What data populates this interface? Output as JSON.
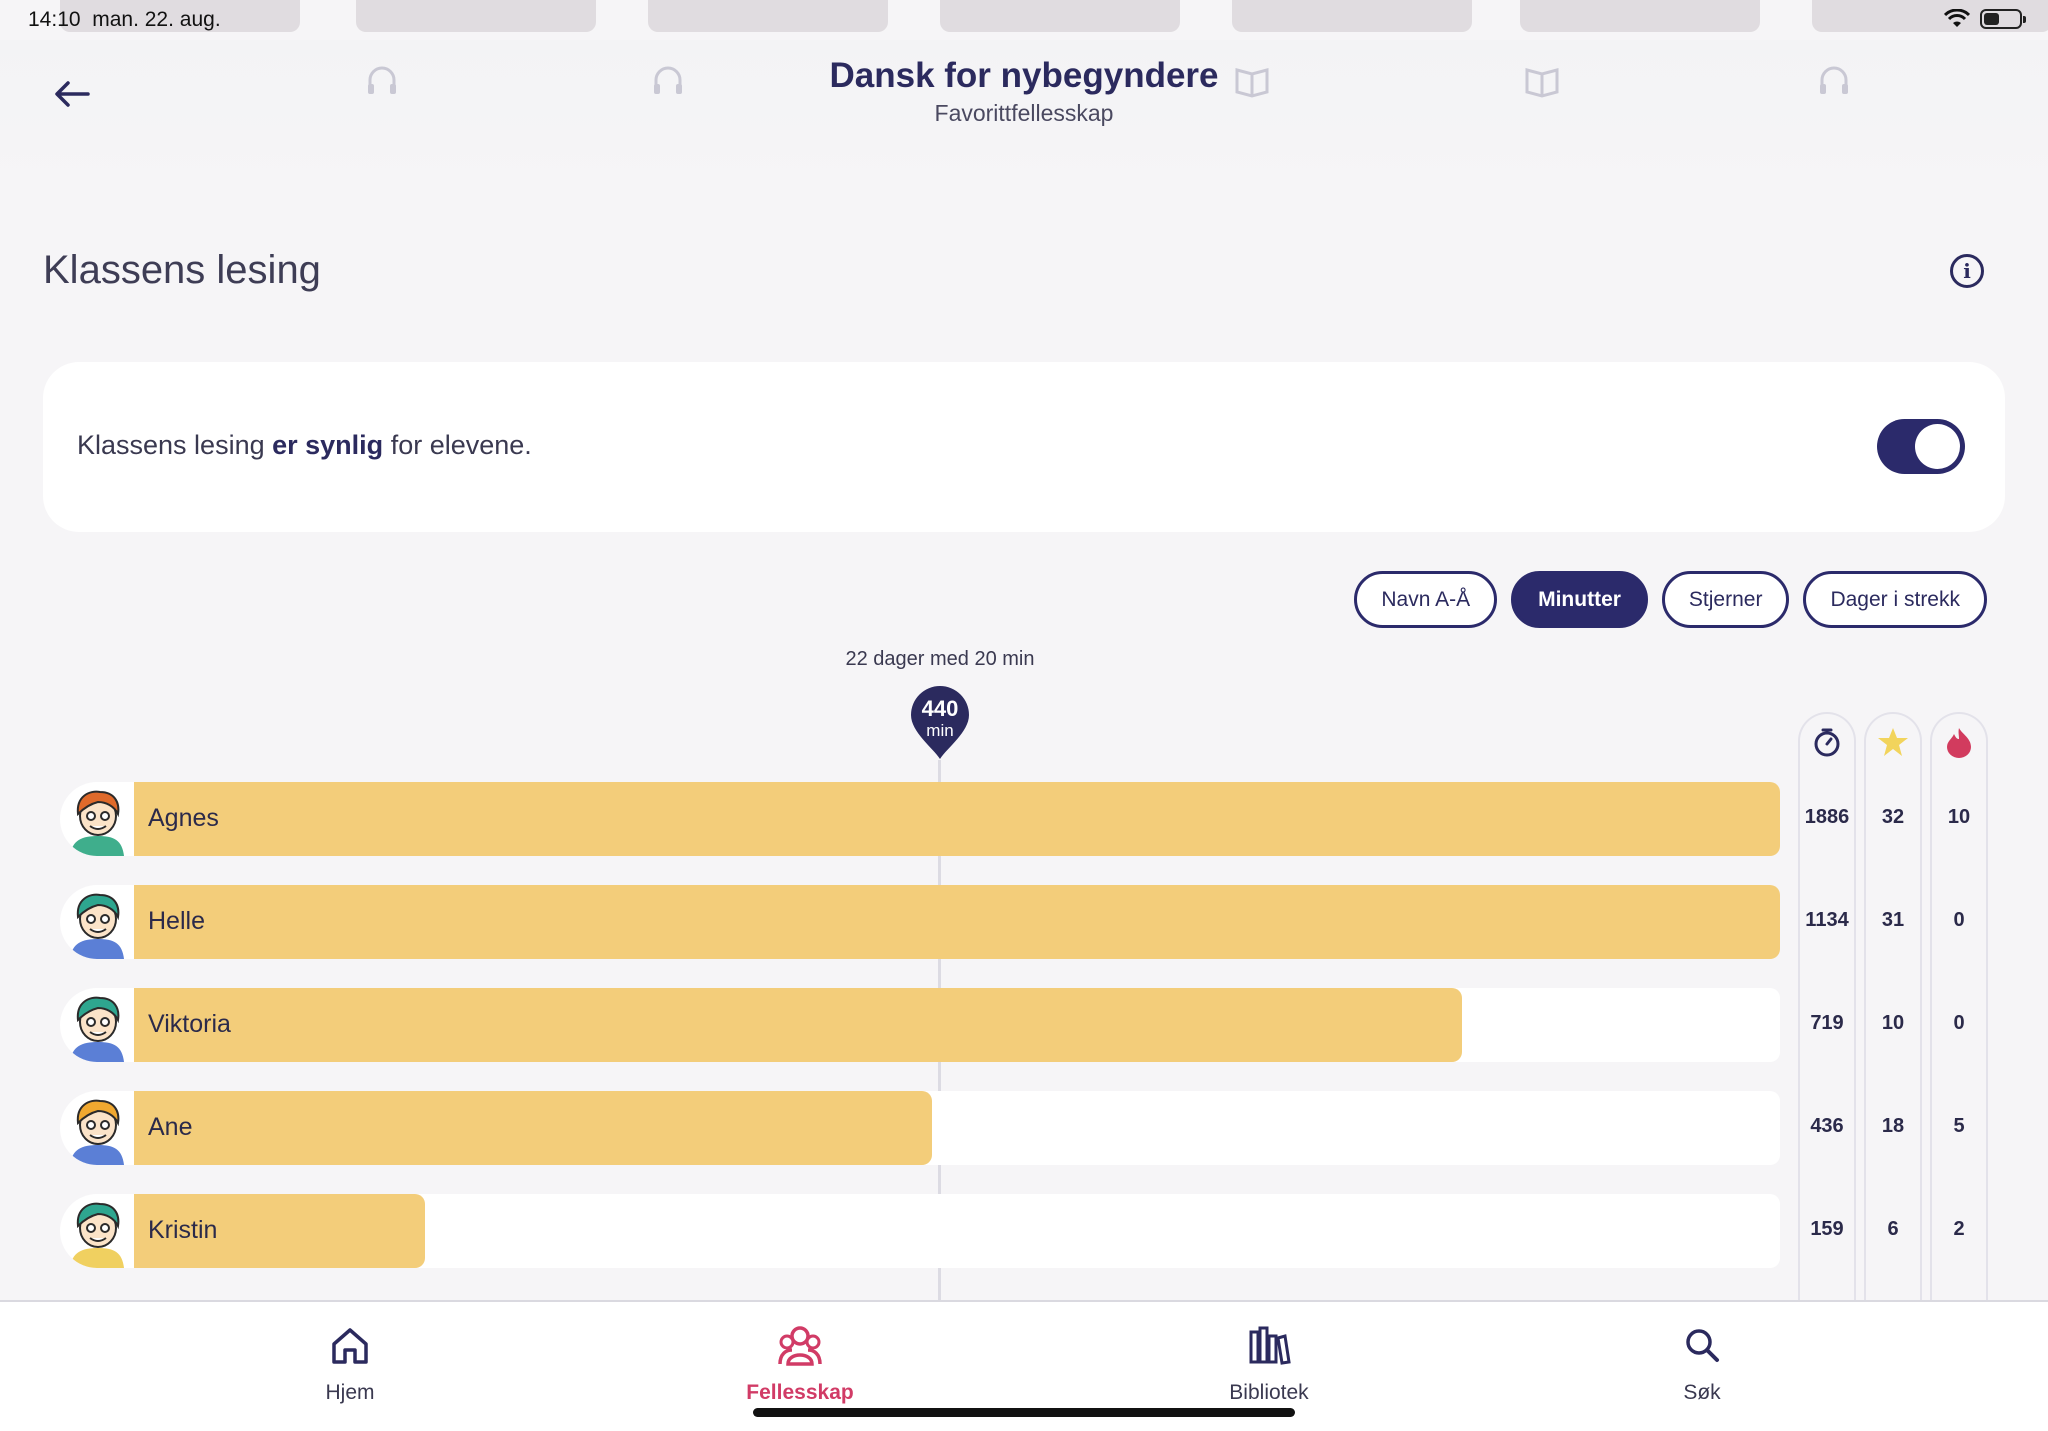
{
  "status": {
    "time": "14:10",
    "date": "man. 22. aug.",
    "battery_percent": 45
  },
  "header": {
    "title": "Dansk for nybegyndere",
    "subtitle": "Favorittfellesskap"
  },
  "section": {
    "title": "Klassens lesing"
  },
  "visibility": {
    "prefix": "Klassens lesing",
    "bold": "er synlig",
    "suffix": "for elevene.",
    "toggle_on": true
  },
  "sort_options": [
    "Navn A-Å",
    "Minutter",
    "Stjerner",
    "Dager i strekk"
  ],
  "sort_active": "Minutter",
  "goal": {
    "label": "22 dager med 20 min",
    "value": "440",
    "unit": "min",
    "minutes": 440
  },
  "chart_data": {
    "type": "bar",
    "orientation": "horizontal",
    "title": "Klassens lesing",
    "xlabel": "Minutter",
    "categories": [
      "Agnes",
      "Helle",
      "Viktoria",
      "Ane",
      "Kristin"
    ],
    "values": [
      1886,
      1134,
      719,
      436,
      159
    ],
    "bar_fraction": [
      1.0,
      1.0,
      0.807,
      0.485,
      0.177
    ],
    "reference_line": {
      "value": 440,
      "label": "22 dager med 20 min"
    }
  },
  "students": [
    {
      "name": "Agnes",
      "minutes": "1886",
      "stars": "32",
      "streak": "10",
      "hair": "#e06a2b",
      "shirt": "#3fae8c"
    },
    {
      "name": "Helle",
      "minutes": "1134",
      "stars": "31",
      "streak": "0",
      "hair": "#2ea68f",
      "shirt": "#5b7fd6"
    },
    {
      "name": "Viktoria",
      "minutes": "719",
      "stars": "10",
      "streak": "0",
      "hair": "#2ea68f",
      "shirt": "#5b7fd6"
    },
    {
      "name": "Ane",
      "minutes": "436",
      "stars": "18",
      "streak": "5",
      "hair": "#f0a830",
      "shirt": "#5b7fd6"
    },
    {
      "name": "Kristin",
      "minutes": "159",
      "stars": "6",
      "streak": "2",
      "hair": "#2ea68f",
      "shirt": "#f0d060"
    }
  ],
  "stat_icons": [
    "timer-icon",
    "star-icon",
    "flame-icon"
  ],
  "colors": {
    "accent": "#2b2a6b",
    "bar": "#f3cd7a",
    "active_tab": "#d13b66",
    "star": "#f2d45c",
    "flame": "#d23b5e"
  },
  "tabs": [
    {
      "label": "Hjem",
      "icon": "home-icon"
    },
    {
      "label": "Fellesskap",
      "icon": "community-icon",
      "active": true
    },
    {
      "label": "Bibliotek",
      "icon": "library-icon"
    },
    {
      "label": "Søk",
      "icon": "search-icon"
    }
  ]
}
